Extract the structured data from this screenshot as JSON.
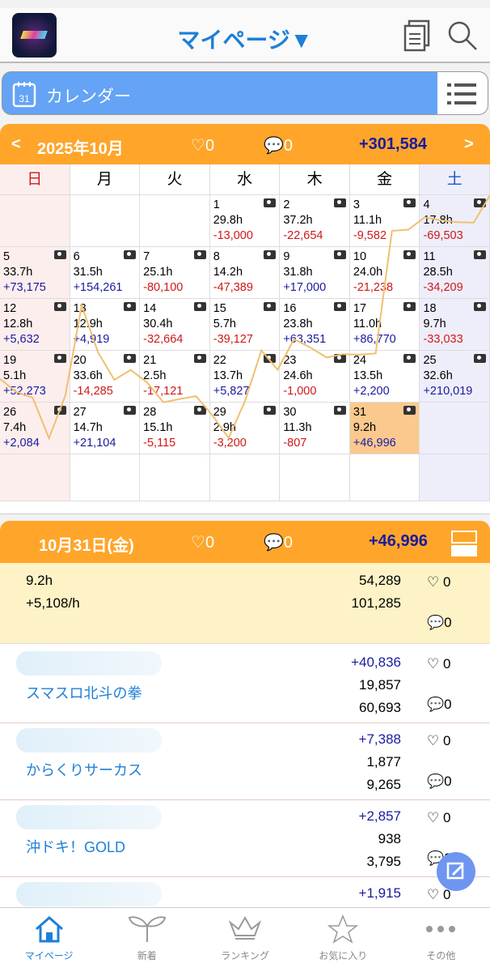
{
  "header": {
    "title": "マイページ▼"
  },
  "calendar_bar": {
    "label": "カレンダー",
    "icon_day": "31"
  },
  "month": {
    "label": "2025年10月",
    "likes": "0",
    "comments": "0",
    "total": "+301,584"
  },
  "weekdays": [
    "日",
    "月",
    "火",
    "水",
    "木",
    "金",
    "土"
  ],
  "weeks": [
    [
      null,
      null,
      null,
      {
        "d": "1",
        "h": "29.8h",
        "v": "-13,000"
      },
      {
        "d": "2",
        "h": "37.2h",
        "v": "-22,654"
      },
      {
        "d": "3",
        "h": "11.1h",
        "v": "-9,582"
      },
      {
        "d": "4",
        "h": "17.8h",
        "v": "-69,503"
      }
    ],
    [
      {
        "d": "5",
        "h": "33.7h",
        "v": "+73,175"
      },
      {
        "d": "6",
        "h": "31.5h",
        "v": "+154,261"
      },
      {
        "d": "7",
        "h": "25.1h",
        "v": "-80,100"
      },
      {
        "d": "8",
        "h": "14.2h",
        "v": "-47,389"
      },
      {
        "d": "9",
        "h": "31.8h",
        "v": "+17,000"
      },
      {
        "d": "10",
        "h": "24.0h",
        "v": "-21,238"
      },
      {
        "d": "11",
        "h": "28.5h",
        "v": "-34,209"
      }
    ],
    [
      {
        "d": "12",
        "h": "12.8h",
        "v": "+5,632"
      },
      {
        "d": "13",
        "h": "12.9h",
        "v": "+4,919"
      },
      {
        "d": "14",
        "h": "30.4h",
        "v": "-32,664"
      },
      {
        "d": "15",
        "h": "5.7h",
        "v": "-39,127"
      },
      {
        "d": "16",
        "h": "23.8h",
        "v": "+63,351"
      },
      {
        "d": "17",
        "h": "11.0h",
        "v": "+86,770"
      },
      {
        "d": "18",
        "h": "9.7h",
        "v": "-33,033"
      }
    ],
    [
      {
        "d": "19",
        "h": "5.1h",
        "v": "+52,273"
      },
      {
        "d": "20",
        "h": "33.6h",
        "v": "-14,285"
      },
      {
        "d": "21",
        "h": "2.5h",
        "v": "-17,121"
      },
      {
        "d": "22",
        "h": "13.7h",
        "v": "+5,827"
      },
      {
        "d": "23",
        "h": "24.6h",
        "v": "-1,000"
      },
      {
        "d": "24",
        "h": "13.5h",
        "v": "+2,200"
      },
      {
        "d": "25",
        "h": "32.6h",
        "v": "+210,019"
      }
    ],
    [
      {
        "d": "26",
        "h": "7.4h",
        "v": "+2,084"
      },
      {
        "d": "27",
        "h": "14.7h",
        "v": "+21,104"
      },
      {
        "d": "28",
        "h": "15.1h",
        "v": "-5,115"
      },
      {
        "d": "29",
        "h": "2.9h",
        "v": "-3,200"
      },
      {
        "d": "30",
        "h": "11.3h",
        "v": "-807"
      },
      {
        "d": "31",
        "h": "9.2h",
        "v": "+46,996",
        "sel": true
      },
      null
    ],
    [
      null,
      null,
      null,
      null,
      null,
      null,
      null
    ]
  ],
  "day": {
    "label": "10月31日(金)",
    "likes": "0",
    "comments": "0",
    "total": "+46,996",
    "hours": "9.2h",
    "rate": "+5,108/h",
    "invest": "54,289",
    "collect": "101,285",
    "detail_likes": "0",
    "detail_comments": "0"
  },
  "entries": [
    {
      "name": "スマスロ北斗の拳",
      "diff": "+40,836",
      "invest": "19,857",
      "collect": "60,693",
      "likes": "0",
      "comments": "0"
    },
    {
      "name": "からくりサーカス",
      "diff": "+7,388",
      "invest": "1,877",
      "collect": "9,265",
      "likes": "0",
      "comments": "0"
    },
    {
      "name": "沖ドキ！GOLD",
      "diff": "+2,857",
      "invest": "938",
      "collect": "3,795",
      "likes": "0",
      "comments": "0"
    },
    {
      "name": "",
      "diff": "+1,915",
      "likes": "0"
    }
  ],
  "nav": [
    "マイページ",
    "新着",
    "ランキング",
    "お気に入り",
    "その他"
  ],
  "colors": {
    "accent": "#1e7fd8",
    "orange": "#fea52a",
    "plus": "#1a1aa0",
    "minus": "#d01818",
    "line": "#f0c070"
  }
}
